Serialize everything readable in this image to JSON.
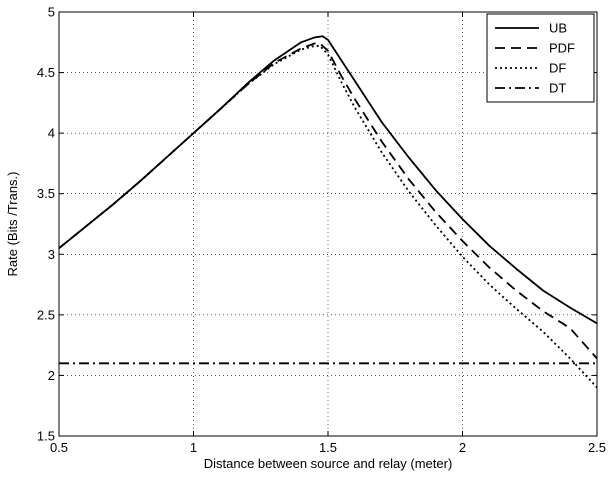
{
  "chart_data": {
    "type": "line",
    "xlabel": "Distance between source and relay (meter)",
    "ylabel": "Rate (Bits /Trans.)",
    "xlim": [
      0.5,
      2.5
    ],
    "ylim": [
      1.5,
      5
    ],
    "xticks": [
      0.5,
      1,
      1.5,
      2,
      2.5
    ],
    "yticks": [
      1.5,
      2,
      2.5,
      3,
      3.5,
      4,
      4.5,
      5
    ],
    "xtick_labels": [
      "0.5",
      "1",
      "1.5",
      "2",
      "2.5"
    ],
    "ytick_labels": [
      "1.5",
      "2",
      "2.5",
      "3",
      "3.5",
      "4",
      "4.5",
      "5"
    ],
    "grid": true,
    "legend_position": "top-right",
    "series": [
      {
        "name": "UB",
        "style": "solid",
        "color": "#000000",
        "x": [
          0.5,
          0.6,
          0.7,
          0.8,
          0.9,
          1.0,
          1.1,
          1.2,
          1.3,
          1.4,
          1.45,
          1.48,
          1.5,
          1.55,
          1.6,
          1.7,
          1.8,
          1.9,
          2.0,
          2.1,
          2.2,
          2.3,
          2.4,
          2.5
        ],
        "y": [
          3.05,
          3.23,
          3.41,
          3.6,
          3.8,
          4.0,
          4.2,
          4.41,
          4.6,
          4.75,
          4.79,
          4.8,
          4.77,
          4.6,
          4.43,
          4.09,
          3.8,
          3.53,
          3.29,
          3.07,
          2.88,
          2.7,
          2.56,
          2.43
        ]
      },
      {
        "name": "PDF",
        "style": "dashed",
        "color": "#000000",
        "x": [
          0.5,
          0.6,
          0.7,
          0.8,
          0.9,
          1.0,
          1.1,
          1.2,
          1.3,
          1.4,
          1.45,
          1.47,
          1.5,
          1.55,
          1.6,
          1.7,
          1.8,
          1.9,
          2.0,
          2.1,
          2.2,
          2.3,
          2.4,
          2.5
        ],
        "y": [
          3.05,
          3.23,
          3.41,
          3.6,
          3.8,
          4.0,
          4.2,
          4.4,
          4.58,
          4.7,
          4.74,
          4.74,
          4.68,
          4.47,
          4.28,
          3.93,
          3.62,
          3.35,
          3.11,
          2.89,
          2.7,
          2.53,
          2.39,
          2.14
        ]
      },
      {
        "name": "DF",
        "style": "dotted",
        "color": "#000000",
        "x": [
          0.5,
          0.6,
          0.7,
          0.8,
          0.9,
          1.0,
          1.1,
          1.2,
          1.3,
          1.4,
          1.45,
          1.47,
          1.5,
          1.55,
          1.6,
          1.7,
          1.8,
          1.9,
          2.0,
          2.1,
          2.2,
          2.3,
          2.4,
          2.5
        ],
        "y": [
          3.05,
          3.23,
          3.41,
          3.6,
          3.8,
          4.0,
          4.2,
          4.4,
          4.57,
          4.69,
          4.72,
          4.72,
          4.65,
          4.42,
          4.21,
          3.84,
          3.52,
          3.24,
          2.98,
          2.75,
          2.55,
          2.36,
          2.14,
          1.9
        ]
      },
      {
        "name": "DT",
        "style": "dashdot",
        "color": "#000000",
        "x": [
          0.5,
          2.5
        ],
        "y": [
          2.1,
          2.1
        ]
      }
    ]
  }
}
